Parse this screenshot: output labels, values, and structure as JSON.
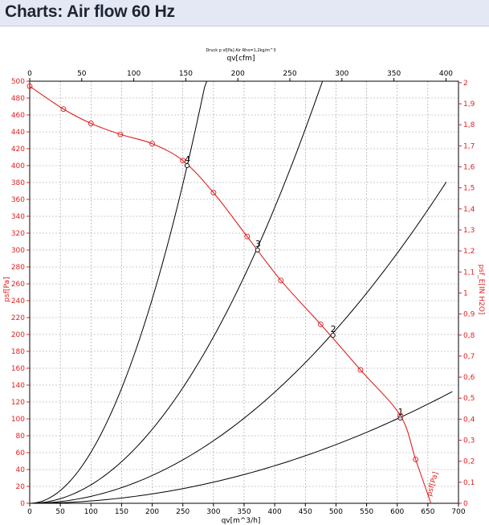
{
  "page": {
    "title": "Charts: Air flow 60 Hz"
  },
  "chart_data": {
    "type": "line",
    "title": "Druck p sf[Pa] Air Rho=1,2kg/m^3",
    "xlabel_bottom": "qv[m^3/h]",
    "xlabel_top": "qv[cfm]",
    "ylabel_left": "psf[Pa]",
    "ylabel_right": "psf_E[IN H2O]",
    "xlim": [
      0,
      700
    ],
    "ylim": [
      0,
      500
    ],
    "x_ticks_bottom": [
      "0",
      "50",
      "100",
      "150",
      "200",
      "250",
      "300",
      "350",
      "400",
      "450",
      "500",
      "550",
      "600",
      "650",
      "700"
    ],
    "x_ticks_top": [
      "0",
      "50",
      "100",
      "150",
      "200",
      "250",
      "300",
      "350",
      "400"
    ],
    "y_ticks_left": [
      "0",
      "20",
      "40",
      "60",
      "80",
      "100",
      "120",
      "140",
      "160",
      "180",
      "200",
      "220",
      "240",
      "260",
      "280",
      "300",
      "320",
      "340",
      "360",
      "380",
      "400",
      "420",
      "440",
      "460",
      "480",
      "500"
    ],
    "y_ticks_right": [
      "0",
      "0,1",
      "0,2",
      "0,3",
      "0,4",
      "0,5",
      "0,6",
      "0,7",
      "0,8",
      "0,9",
      "1",
      "1,1",
      "1,2",
      "1,3",
      "1,4",
      "1,5",
      "1,6",
      "1,7",
      "1,8",
      "1,9",
      "2"
    ],
    "fan_curve": {
      "name": "psf[Pa]",
      "label": "psf[Pa]",
      "color": "#e02020",
      "x": [
        0,
        55,
        100,
        148,
        200,
        250,
        300,
        355,
        410,
        475,
        540,
        605,
        630,
        655
      ],
      "y": [
        494,
        467,
        450,
        437,
        426,
        406,
        368,
        316,
        264,
        212,
        158,
        104,
        52,
        0
      ]
    },
    "system_curves": [
      {
        "name": "1",
        "label": "1",
        "color": "#000000",
        "coef": 0.000278,
        "xmax": 690,
        "label_x": 605,
        "label_y": 101
      },
      {
        "name": "2",
        "label": "2",
        "color": "#000000",
        "coef": 0.000823,
        "xmax": 680,
        "label_x": 495,
        "label_y": 199
      },
      {
        "name": "3",
        "label": "3",
        "color": "#000000",
        "coef": 0.00219,
        "xmax": 478,
        "label_x": 372,
        "label_y": 300
      },
      {
        "name": "4",
        "label": "4",
        "color": "#000000",
        "coef": 0.00605,
        "xmax": 289,
        "label_x": 257,
        "label_y": 400
      }
    ]
  }
}
